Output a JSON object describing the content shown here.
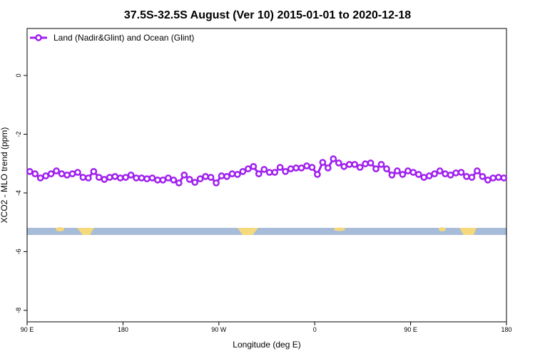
{
  "chart_data": {
    "type": "line",
    "title": "37.5S-32.5S August (Ver 10)   2015-01-01 to 2020-12-18",
    "x_label": "Longitude (deg E)",
    "y_label": "XCO2 - MLO trend (ppm)",
    "xlim": [
      90,
      540
    ],
    "xticks": [
      {
        "value": 90,
        "label": "90 E"
      },
      {
        "value": 180,
        "label": "180"
      },
      {
        "value": 270,
        "label": "90 W"
      },
      {
        "value": 360,
        "label": "0"
      },
      {
        "value": 450,
        "label": "90 E"
      },
      {
        "value": 540,
        "label": "180"
      }
    ],
    "ylim": [
      -8.39,
      1.6
    ],
    "yticks": [
      0,
      -2,
      -4,
      -6,
      -8
    ],
    "legend": "upper left",
    "x": [
      92.5,
      97.5,
      102.5,
      107.5,
      112.5,
      117.5,
      122.5,
      127.5,
      132.5,
      137.5,
      142.5,
      147.5,
      152.5,
      157.5,
      162.5,
      167.5,
      172.5,
      177.5,
      182.5,
      187.5,
      192.5,
      197.5,
      202.5,
      207.5,
      212.5,
      217.5,
      222.5,
      227.5,
      232.5,
      237.5,
      242.5,
      247.5,
      252.5,
      257.5,
      262.5,
      267.5,
      272.5,
      277.5,
      282.5,
      287.5,
      292.5,
      297.5,
      302.5,
      307.5,
      312.5,
      317.5,
      322.5,
      327.5,
      332.5,
      337.5,
      342.5,
      347.5,
      352.5,
      357.5,
      362.5,
      367.5,
      372.5,
      377.5,
      382.5,
      387.5,
      392.5,
      397.5,
      402.5,
      407.5,
      412.5,
      417.5,
      422.5,
      427.5,
      432.5,
      437.5,
      442.5,
      447.5,
      452.5,
      457.5,
      462.5,
      467.5,
      472.5,
      477.5,
      482.5,
      487.5,
      492.5,
      497.5,
      502.5,
      507.5,
      512.5,
      517.5,
      522.5,
      527.5,
      532.5,
      537.5
    ],
    "series": [
      {
        "name": "Land (Nadir&Glint) and Ocean (Glint)",
        "color": "#a020f0",
        "values": [
          -3.27,
          -3.35,
          -3.49,
          -3.42,
          -3.35,
          -3.25,
          -3.35,
          -3.39,
          -3.35,
          -3.3,
          -3.47,
          -3.49,
          -3.27,
          -3.47,
          -3.54,
          -3.47,
          -3.44,
          -3.49,
          -3.47,
          -3.39,
          -3.49,
          -3.49,
          -3.52,
          -3.49,
          -3.56,
          -3.56,
          -3.49,
          -3.56,
          -3.66,
          -3.39,
          -3.54,
          -3.64,
          -3.52,
          -3.44,
          -3.47,
          -3.66,
          -3.42,
          -3.44,
          -3.35,
          -3.37,
          -3.27,
          -3.18,
          -3.1,
          -3.35,
          -3.2,
          -3.3,
          -3.3,
          -3.13,
          -3.27,
          -3.18,
          -3.15,
          -3.15,
          -3.08,
          -3.13,
          -3.37,
          -2.96,
          -3.15,
          -2.84,
          -2.98,
          -3.1,
          -3.03,
          -3.03,
          -3.13,
          -3.01,
          -2.98,
          -3.18,
          -3.03,
          -3.18,
          -3.39,
          -3.25,
          -3.37,
          -3.25,
          -3.3,
          -3.37,
          -3.47,
          -3.42,
          -3.35,
          -3.25,
          -3.35,
          -3.39,
          -3.32,
          -3.3,
          -3.44,
          -3.47,
          -3.25,
          -3.44,
          -3.56,
          -3.49,
          -3.47,
          -3.49
        ]
      }
    ]
  }
}
